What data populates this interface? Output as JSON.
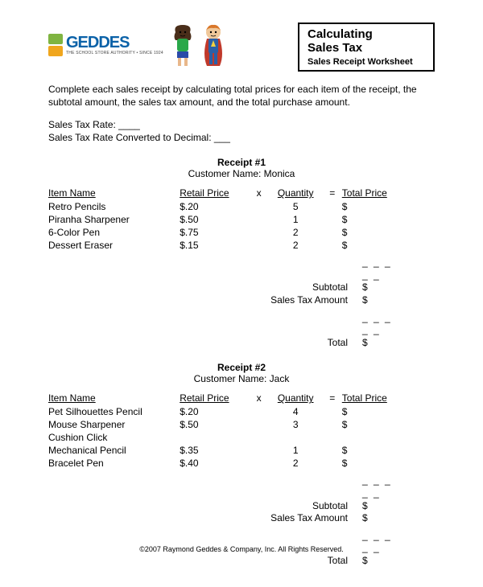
{
  "header": {
    "logo_text": "GEDDES",
    "logo_icon_colors": [
      "#7fb441",
      "#f0a61e"
    ],
    "logo_subline": "THE SCHOOL STORE AUTHORITY • SINCE 1924",
    "title_line1": "Calculating",
    "title_line2": "Sales Tax",
    "title_sub": "Sales Receipt Worksheet"
  },
  "instructions": "Complete each sales receipt by calculating total prices for each item of the receipt, the subtotal amount, the sales tax amount, and the total purchase amount.",
  "rate": {
    "line1": "Sales Tax Rate: ____",
    "line2": "Sales Tax Rate Converted to Decimal: ___"
  },
  "columns": {
    "item": "Item Name",
    "price": "Retail Price",
    "x": "x",
    "qty": "Quantity",
    "eq": "=",
    "total": "Total Price"
  },
  "receipts": [
    {
      "title": "Receipt #1",
      "customer_label": "Customer Name:",
      "customer_name": "Monica",
      "rows": [
        {
          "item": "Retro Pencils",
          "price": "$.20",
          "qty": "5",
          "indent": false
        },
        {
          "item": "Piranha Sharpener",
          "price": "$.50",
          "qty": "1",
          "indent": false
        },
        {
          "item": "6-Color Pen",
          "price": "$.75",
          "qty": "2",
          "indent": false
        },
        {
          "item": "Dessert Eraser",
          "price": "$.15",
          "qty": "2",
          "indent": false
        }
      ]
    },
    {
      "title": "Receipt #2",
      "customer_label": "Customer Name:",
      "customer_name": "Jack",
      "rows": [
        {
          "item": "Pet Silhouettes Pencil",
          "price": "$.20",
          "qty": "4",
          "indent": false
        },
        {
          "item": "Mouse Sharpener",
          "price": "$.50",
          "qty": "3",
          "indent": false
        },
        {
          "item": "Cushion Click",
          "price": "",
          "qty": "",
          "indent": false
        },
        {
          "item": "Mechanical Pencil",
          "price": "$.35",
          "qty": "1",
          "indent": true
        },
        {
          "item": "Bracelet Pen",
          "price": "$.40",
          "qty": "2",
          "indent": false
        }
      ]
    }
  ],
  "totals": {
    "subtotal": "Subtotal",
    "tax": "Sales Tax Amount",
    "total": "Total",
    "dollar": "$",
    "blank": "_ _ _ _ _"
  },
  "footer": "©2007 Raymond Geddes & Company, Inc. All Rights Reserved."
}
